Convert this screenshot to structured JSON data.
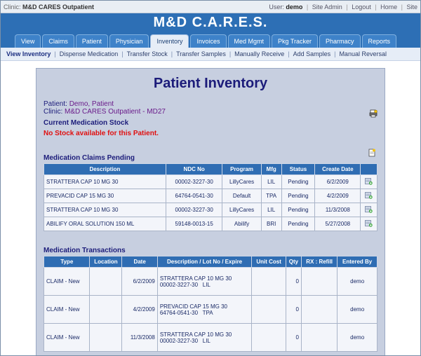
{
  "topbar": {
    "clinic_label": "Clinic:",
    "clinic_name": "M&D CARES Outpatient",
    "user_label": "User:",
    "user_name": "demo",
    "links": [
      "Site Admin",
      "Logout",
      "Home",
      "Site"
    ]
  },
  "app_title": "M&D C.A.R.E.S.",
  "tabs": [
    "View",
    "Claims",
    "Patient",
    "Physician",
    "Inventory",
    "Invoices",
    "Med Mgmt",
    "Pkg Tracker",
    "Pharmacy",
    "Reports"
  ],
  "active_tab": "Inventory",
  "subnav": [
    "View Inventory",
    "Dispense Medication",
    "Transfer Stock",
    "Transfer Samples",
    "Manually Receive",
    "Add Samples",
    "Manual Reversal"
  ],
  "page": {
    "title": "Patient Inventory",
    "patient_label": "Patient:",
    "patient_value": "Demo, Patient",
    "clinic_label": "Clinic:",
    "clinic_value": "M&D CARES Outpatient - MD27",
    "current_stock_title": "Current Medication Stock",
    "no_stock_msg": "No Stock available for this Patient.",
    "claims_title": "Medication Claims Pending",
    "transactions_title": "Medication Transactions"
  },
  "claims": {
    "headers": [
      "Description",
      "NDC No",
      "Program",
      "Mfg",
      "Status",
      "Create Date",
      ""
    ],
    "rows": [
      [
        "STRATTERA CAP 10 MG 30",
        "00002-3227-30",
        "LillyCares",
        "LIL",
        "Pending",
        "6/2/2009"
      ],
      [
        "PREVACID CAP 15 MG 30",
        "64764-0541-30",
        "Default",
        "TPA",
        "Pending",
        "4/2/2009"
      ],
      [
        "STRATTERA CAP 10 MG 30",
        "00002-3227-30",
        "LillyCares",
        "LIL",
        "Pending",
        "11/3/2008"
      ],
      [
        "ABILIFY ORAL SOLUTION 150 ML",
        "59148-0013-15",
        "Abilify",
        "BRI",
        "Pending",
        "5/27/2008"
      ]
    ]
  },
  "transactions": {
    "headers": [
      "Type",
      "Location",
      "Date",
      "Description / Lot No / Expire",
      "Unit Cost",
      "Qty",
      "RX : Refill",
      "Entered By"
    ],
    "rows": [
      {
        "type": "CLAIM - New",
        "location": "",
        "date": "6/2/2009",
        "desc1": "STRATTERA CAP 10 MG 30",
        "desc2": "00002-3227-30   LIL",
        "unit_cost": "",
        "qty": "0",
        "rx": "",
        "entered_by": "demo"
      },
      {
        "type": "CLAIM - New",
        "location": "",
        "date": "4/2/2009",
        "desc1": "PREVACID CAP 15 MG 30",
        "desc2": "64764-0541-30   TPA",
        "unit_cost": "",
        "qty": "0",
        "rx": "",
        "entered_by": "demo"
      },
      {
        "type": "CLAIM - New",
        "location": "",
        "date": "11/3/2008",
        "desc1": "STRATTERA CAP 10 MG 30",
        "desc2": "00002-3227-30   LIL",
        "unit_cost": "",
        "qty": "0",
        "rx": "",
        "entered_by": "demo"
      }
    ]
  },
  "icons": {
    "print": "print-icon",
    "new_doc": "new-document-icon",
    "row_action": "add-to-inventory-icon"
  },
  "colors": {
    "header_blue": "#2d6fb5",
    "panel_bg": "#c7cfe0",
    "title_navy": "#1c1c7a",
    "error_red": "#e01010",
    "patient_purple": "#6a1b8a"
  }
}
